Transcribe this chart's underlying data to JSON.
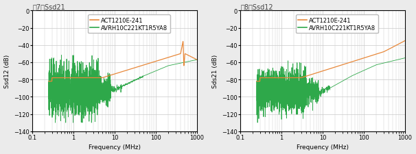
{
  "fig_title_left": "图7：Ssd21",
  "fig_title_right": "图8：Ssd12",
  "ylabel_left": "Ssd12 (dB)",
  "ylabel_right": "Sds21 (dB)",
  "xlabel": "Frequency (MHz)",
  "xlim": [
    0.1,
    1000
  ],
  "ylim": [
    -140,
    0
  ],
  "yticks": [
    0,
    -20,
    -40,
    -60,
    -80,
    -100,
    -120,
    -140
  ],
  "xticks": [
    0.1,
    1,
    10,
    100,
    1000
  ],
  "xtick_labels": [
    "0.1",
    "1",
    "10",
    "100",
    "1000"
  ],
  "legend_entries": [
    "ACT1210E-241",
    "AVRH10C221KT1R5YA8"
  ],
  "color_orange": "#E8883A",
  "color_green": "#2EA84A",
  "bg_color": "#EBEBEB",
  "plot_bg": "#FFFFFF",
  "grid_color": "#C8C8C8",
  "title_fontsize": 7,
  "label_fontsize": 6.5,
  "legend_fontsize": 6,
  "tick_fontsize": 6
}
